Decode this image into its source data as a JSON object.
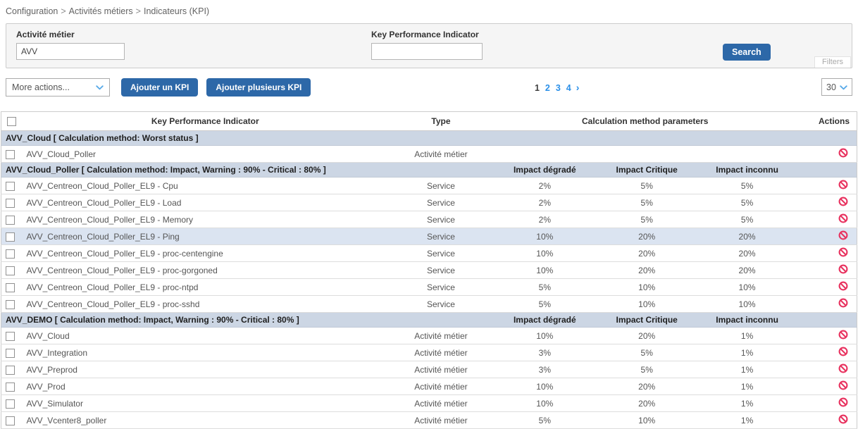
{
  "breadcrumb": {
    "separator": ">",
    "items": [
      "Configuration",
      "Activités métiers",
      "Indicateurs (KPI)"
    ]
  },
  "filters": {
    "activity": {
      "label": "Activité métier",
      "value": "AVV"
    },
    "kpi": {
      "label": "Key Performance Indicator",
      "value": ""
    },
    "search_label": "Search",
    "filters_label": "Filters"
  },
  "toolbar": {
    "more_actions": "More actions...",
    "add_kpi": "Ajouter un KPI",
    "add_multiple_kpi": "Ajouter plusieurs KPI",
    "page_size": "30"
  },
  "pagination": {
    "current": "1",
    "pages": [
      "1",
      "2",
      "3",
      "4"
    ],
    "next": "›"
  },
  "table": {
    "headers": {
      "kpi": "Key Performance Indicator",
      "type": "Type",
      "calc_params": "Calculation method parameters",
      "actions": "Actions"
    },
    "groups": [
      {
        "title": "AVV_Cloud [ Calculation method: Worst status ]",
        "impact_headers": null,
        "rows": [
          {
            "name": "AVV_Cloud_Poller",
            "type": "Activité métier",
            "degraded": "",
            "critical": "",
            "unknown": "",
            "highlight": false
          }
        ]
      },
      {
        "title": "AVV_Cloud_Poller [ Calculation method: Impact, Warning : 90% - Critical : 80% ]",
        "impact_headers": [
          "Impact dégradé",
          "Impact Critique",
          "Impact inconnu"
        ],
        "rows": [
          {
            "name": "AVV_Centreon_Cloud_Poller_EL9 - Cpu",
            "type": "Service",
            "degraded": "2%",
            "critical": "5%",
            "unknown": "5%",
            "highlight": false
          },
          {
            "name": "AVV_Centreon_Cloud_Poller_EL9 - Load",
            "type": "Service",
            "degraded": "2%",
            "critical": "5%",
            "unknown": "5%",
            "highlight": false
          },
          {
            "name": "AVV_Centreon_Cloud_Poller_EL9 - Memory",
            "type": "Service",
            "degraded": "2%",
            "critical": "5%",
            "unknown": "5%",
            "highlight": false
          },
          {
            "name": "AVV_Centreon_Cloud_Poller_EL9 - Ping",
            "type": "Service",
            "degraded": "10%",
            "critical": "20%",
            "unknown": "20%",
            "highlight": true
          },
          {
            "name": "AVV_Centreon_Cloud_Poller_EL9 - proc-centengine",
            "type": "Service",
            "degraded": "10%",
            "critical": "20%",
            "unknown": "20%",
            "highlight": false
          },
          {
            "name": "AVV_Centreon_Cloud_Poller_EL9 - proc-gorgoned",
            "type": "Service",
            "degraded": "10%",
            "critical": "20%",
            "unknown": "20%",
            "highlight": false
          },
          {
            "name": "AVV_Centreon_Cloud_Poller_EL9 - proc-ntpd",
            "type": "Service",
            "degraded": "5%",
            "critical": "10%",
            "unknown": "10%",
            "highlight": false
          },
          {
            "name": "AVV_Centreon_Cloud_Poller_EL9 - proc-sshd",
            "type": "Service",
            "degraded": "5%",
            "critical": "10%",
            "unknown": "10%",
            "highlight": false
          }
        ]
      },
      {
        "title": "AVV_DEMO [ Calculation method: Impact, Warning : 90% - Critical : 80% ]",
        "impact_headers": [
          "Impact dégradé",
          "Impact Critique",
          "Impact inconnu"
        ],
        "rows": [
          {
            "name": "AVV_Cloud",
            "type": "Activité métier",
            "degraded": "10%",
            "critical": "20%",
            "unknown": "1%",
            "highlight": false
          },
          {
            "name": "AVV_Integration",
            "type": "Activité métier",
            "degraded": "3%",
            "critical": "5%",
            "unknown": "1%",
            "highlight": false
          },
          {
            "name": "AVV_Preprod",
            "type": "Activité métier",
            "degraded": "3%",
            "critical": "5%",
            "unknown": "1%",
            "highlight": false
          },
          {
            "name": "AVV_Prod",
            "type": "Activité métier",
            "degraded": "10%",
            "critical": "20%",
            "unknown": "1%",
            "highlight": false
          },
          {
            "name": "AVV_Simulator",
            "type": "Activité métier",
            "degraded": "10%",
            "critical": "20%",
            "unknown": "1%",
            "highlight": false
          },
          {
            "name": "AVV_Vcenter8_poller",
            "type": "Activité métier",
            "degraded": "5%",
            "critical": "10%",
            "unknown": "1%",
            "highlight": false
          }
        ]
      }
    ]
  },
  "colors": {
    "accent_blue": "#2d68a8",
    "link_blue": "#2a8fe8",
    "chevron_blue": "#56a9e8",
    "group_header_bg": "#ccd6e4",
    "highlight_row_bg": "#dbe4f1",
    "danger_icon": "#e8325f"
  }
}
